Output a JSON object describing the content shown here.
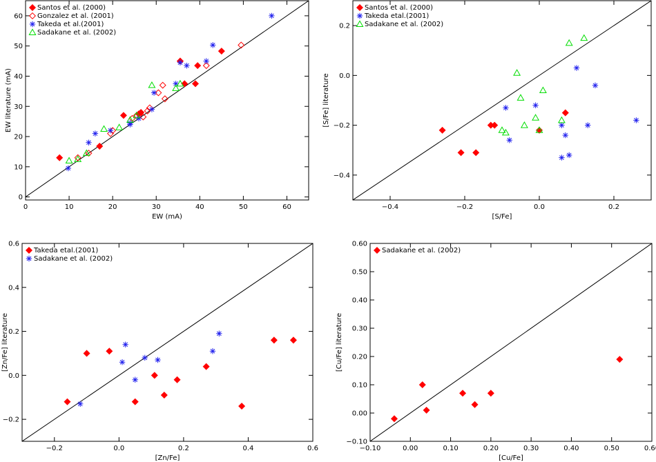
{
  "colors": {
    "santos": "#ff0000",
    "gonzalez": "#ff0000",
    "takeda": "#2222ee",
    "sadakane": "#00dd00",
    "axis": "#000000"
  },
  "chart_data": [
    {
      "id": "ew",
      "type": "scatter",
      "xlabel": "EW (mA)",
      "ylabel": "EW literature (mA)",
      "xlim": [
        0,
        65
      ],
      "ylim": [
        -1,
        65
      ],
      "xticks": [
        0,
        10,
        20,
        30,
        40,
        50,
        60
      ],
      "xtick_labels": [
        "0",
        "10",
        "20",
        "30",
        "40",
        "50",
        "60"
      ],
      "yticks": [
        0,
        10,
        20,
        30,
        40,
        50,
        60
      ],
      "ytick_labels": [
        "0",
        "10",
        "20",
        "30",
        "40",
        "50",
        "60"
      ],
      "legend_position": "top-left",
      "one_to_one_line": true,
      "series": [
        {
          "name": "Santos et al. (2000)",
          "marker": "diamond-filled",
          "color": "#ff0000",
          "points": [
            [
              7.8,
              13
            ],
            [
              17,
              16.8
            ],
            [
              22.5,
              27
            ],
            [
              26,
              27.5
            ],
            [
              26.5,
              28
            ],
            [
              36.5,
              37.5
            ],
            [
              39,
              37.5
            ],
            [
              39.5,
              43.5
            ],
            [
              45,
              48.3
            ],
            [
              35.5,
              45
            ]
          ]
        },
        {
          "name": "Gonzalez et al. (2001)",
          "marker": "diamond-open",
          "color": "#ff0000",
          "points": [
            [
              12,
              13
            ],
            [
              14.5,
              14.5
            ],
            [
              19.5,
              21
            ],
            [
              20,
              22
            ],
            [
              24.5,
              26
            ],
            [
              25.5,
              27
            ],
            [
              26,
              27.5
            ],
            [
              27,
              26.5
            ],
            [
              28,
              28.5
            ],
            [
              28.5,
              29.5
            ],
            [
              30.5,
              34.5
            ],
            [
              31.5,
              37
            ],
            [
              32,
              32.5
            ],
            [
              35.5,
              45
            ],
            [
              41.5,
              43.5
            ],
            [
              49.5,
              50.3
            ]
          ]
        },
        {
          "name": "Takeda et al.(2001)",
          "marker": "asterisk",
          "color": "#2222ee",
          "points": [
            [
              9.8,
              9.5
            ],
            [
              14.5,
              18
            ],
            [
              16,
              21
            ],
            [
              19.5,
              22
            ],
            [
              24,
              24
            ],
            [
              24,
              24.5
            ],
            [
              26,
              26
            ],
            [
              29,
              29
            ],
            [
              29.5,
              34.5
            ],
            [
              34.5,
              37.5
            ],
            [
              35.5,
              44.5
            ],
            [
              37,
              43.5
            ],
            [
              41.5,
              45
            ],
            [
              43,
              50.3
            ],
            [
              56.5,
              60
            ]
          ]
        },
        {
          "name": "Sadakane et al. (2002)",
          "marker": "triangle-open",
          "color": "#00dd00",
          "points": [
            [
              10,
              12
            ],
            [
              12,
              12.5
            ],
            [
              14,
              14.5
            ],
            [
              18,
              22.5
            ],
            [
              21.5,
              23
            ],
            [
              24,
              25.5
            ],
            [
              25.5,
              27
            ],
            [
              29,
              37
            ],
            [
              34.5,
              36
            ],
            [
              35.5,
              37.5
            ]
          ]
        }
      ]
    },
    {
      "id": "sfe",
      "type": "scatter",
      "xlabel": "[S/Fe]",
      "ylabel": "[S/Fe] literature",
      "xlim": [
        -0.5,
        0.3
      ],
      "ylim": [
        -0.5,
        0.3
      ],
      "xticks": [
        -0.4,
        -0.2,
        0.0,
        0.2
      ],
      "xtick_labels": [
        "−0.4",
        "−0.2",
        "0.0",
        "0.2"
      ],
      "yticks": [
        -0.4,
        -0.2,
        0.0,
        0.2
      ],
      "ytick_labels": [
        "−0.4",
        "−0.2",
        "0.0",
        "0.2"
      ],
      "legend_position": "top-left",
      "one_to_one_line": true,
      "series": [
        {
          "name": "Santos et al. (2000)",
          "marker": "diamond-filled",
          "color": "#ff0000",
          "points": [
            [
              -0.26,
              -0.22
            ],
            [
              -0.21,
              -0.31
            ],
            [
              -0.17,
              -0.31
            ],
            [
              -0.13,
              -0.2
            ],
            [
              -0.12,
              -0.2
            ],
            [
              0.0,
              -0.22
            ],
            [
              0.07,
              -0.15
            ]
          ]
        },
        {
          "name": "Takeda etal.(2001)",
          "marker": "asterisk",
          "color": "#2222ee",
          "points": [
            [
              -0.09,
              -0.13
            ],
            [
              -0.08,
              -0.26
            ],
            [
              -0.01,
              -0.12
            ],
            [
              0.06,
              -0.2
            ],
            [
              0.06,
              -0.33
            ],
            [
              0.07,
              -0.24
            ],
            [
              0.08,
              -0.32
            ],
            [
              0.1,
              0.03
            ],
            [
              0.13,
              -0.2
            ],
            [
              0.15,
              -0.04
            ],
            [
              0.26,
              -0.18
            ]
          ]
        },
        {
          "name": "Sadakane et al. (2002)",
          "marker": "triangle-open",
          "color": "#00dd00",
          "points": [
            [
              -0.1,
              -0.22
            ],
            [
              -0.09,
              -0.23
            ],
            [
              -0.06,
              0.01
            ],
            [
              -0.05,
              -0.09
            ],
            [
              -0.04,
              -0.2
            ],
            [
              -0.01,
              -0.17
            ],
            [
              0.0,
              -0.22
            ],
            [
              0.01,
              -0.06
            ],
            [
              0.06,
              -0.18
            ],
            [
              0.08,
              0.13
            ],
            [
              0.12,
              0.15
            ]
          ]
        }
      ]
    },
    {
      "id": "znfe",
      "type": "scatter",
      "xlabel": "[Zn/Fe]",
      "ylabel": "[Zn/Fe] literature",
      "xlim": [
        -0.3,
        0.6
      ],
      "ylim": [
        -0.3,
        0.6
      ],
      "xticks": [
        -0.2,
        0.0,
        0.2,
        0.4,
        0.6
      ],
      "xtick_labels": [
        "−0.2",
        "0.0",
        "0.2",
        "0.4",
        "0.6"
      ],
      "yticks": [
        -0.2,
        0.0,
        0.2,
        0.4,
        0.6
      ],
      "ytick_labels": [
        "−0.2",
        "0.0",
        "0.2",
        "0.4",
        "0.6"
      ],
      "legend_position": "top-left",
      "one_to_one_line": true,
      "series": [
        {
          "name": "Takeda etal.(2001)",
          "marker": "diamond-filled",
          "color": "#ff0000",
          "points": [
            [
              -0.16,
              -0.12
            ],
            [
              -0.1,
              0.1
            ],
            [
              -0.03,
              0.11
            ],
            [
              0.05,
              -0.12
            ],
            [
              0.11,
              0.0
            ],
            [
              0.14,
              -0.09
            ],
            [
              0.18,
              -0.02
            ],
            [
              0.27,
              0.04
            ],
            [
              0.38,
              -0.14
            ],
            [
              0.48,
              0.16
            ],
            [
              0.54,
              0.16
            ]
          ]
        },
        {
          "name": "Sadakane et al. (2002)",
          "marker": "asterisk",
          "color": "#2222ee",
          "points": [
            [
              -0.12,
              -0.13
            ],
            [
              0.01,
              0.06
            ],
            [
              0.02,
              0.14
            ],
            [
              0.05,
              -0.02
            ],
            [
              0.08,
              0.08
            ],
            [
              0.12,
              0.07
            ],
            [
              0.29,
              0.11
            ],
            [
              0.31,
              0.19
            ]
          ]
        }
      ]
    },
    {
      "id": "cufe",
      "type": "scatter",
      "xlabel": "[Cu/Fe]",
      "ylabel": "[Cu/Fe] literature",
      "xlim": [
        -0.1,
        0.6
      ],
      "ylim": [
        -0.1,
        0.6
      ],
      "xticks": [
        -0.1,
        0.0,
        0.1,
        0.2,
        0.3,
        0.4,
        0.5,
        0.6
      ],
      "xtick_labels": [
        "−0.10",
        "0.00",
        "0.10",
        "0.20",
        "0.30",
        "0.40",
        "0.50",
        "0.60"
      ],
      "yticks": [
        -0.1,
        0.0,
        0.1,
        0.2,
        0.3,
        0.4,
        0.5,
        0.6
      ],
      "ytick_labels": [
        "−0.10",
        "0.00",
        "0.10",
        "0.20",
        "0.30",
        "0.40",
        "0.50",
        "0.60"
      ],
      "legend_position": "top-left",
      "one_to_one_line": true,
      "series": [
        {
          "name": "Sadakane et al. (2002)",
          "marker": "diamond-filled",
          "color": "#ff0000",
          "points": [
            [
              -0.04,
              -0.02
            ],
            [
              0.03,
              0.1
            ],
            [
              0.04,
              0.01
            ],
            [
              0.13,
              0.07
            ],
            [
              0.16,
              0.03
            ],
            [
              0.2,
              0.07
            ],
            [
              0.52,
              0.19
            ]
          ]
        }
      ]
    }
  ]
}
